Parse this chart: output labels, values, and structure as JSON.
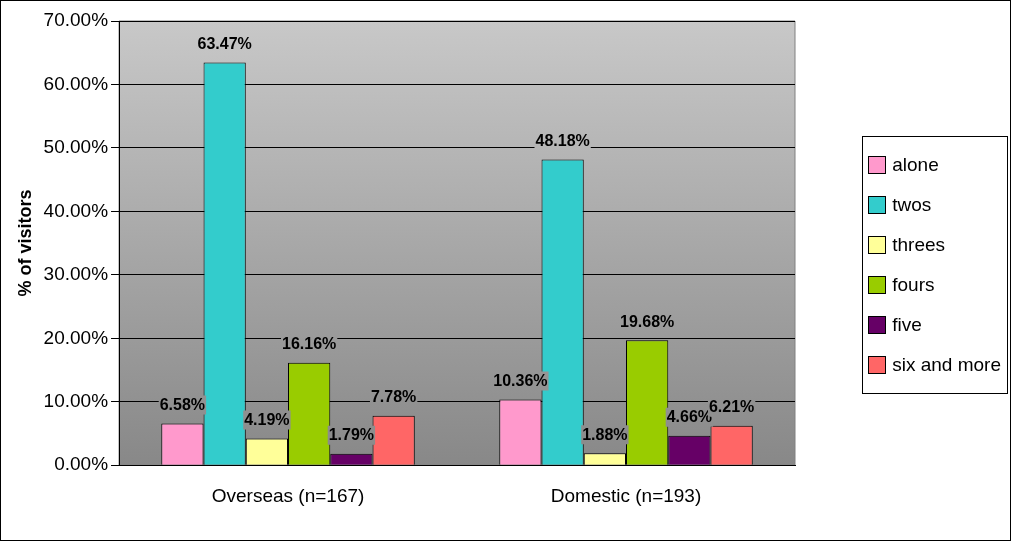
{
  "chart_data": {
    "type": "bar",
    "ylabel": "% of visitors",
    "categories": [
      "Overseas (n=167)",
      "Domestic (n=193)"
    ],
    "series": [
      {
        "name": "alone",
        "color": "#ff99cc",
        "values": [
          6.58,
          10.36
        ],
        "value_labels": [
          "6.58%",
          "10.36%"
        ]
      },
      {
        "name": "twos",
        "color": "#33cccc",
        "values": [
          63.47,
          48.18
        ],
        "value_labels": [
          "63.47%",
          "48.18%"
        ]
      },
      {
        "name": "threes",
        "color": "#ffff99",
        "values": [
          4.19,
          1.88
        ],
        "value_labels": [
          "4.19%",
          "1.88%"
        ]
      },
      {
        "name": "fours",
        "color": "#99cc00",
        "values": [
          16.16,
          19.68
        ],
        "value_labels": [
          "16.16%",
          "19.68%"
        ]
      },
      {
        "name": "five",
        "color": "#660066",
        "values": [
          1.79,
          4.66
        ],
        "value_labels": [
          "1.79%",
          "4.66%"
        ]
      },
      {
        "name": "six and more",
        "color": "#ff6666",
        "values": [
          7.78,
          6.21
        ],
        "value_labels": [
          "7.78%",
          "6.21%"
        ]
      }
    ],
    "ylim": [
      0,
      70
    ],
    "yticks": [
      {
        "value": 0,
        "label": "0.00%"
      },
      {
        "value": 10,
        "label": "10.00%"
      },
      {
        "value": 20,
        "label": "20.00%"
      },
      {
        "value": 30,
        "label": "30.00%"
      },
      {
        "value": 40,
        "label": "40.00%"
      },
      {
        "value": 50,
        "label": "50.00%"
      },
      {
        "value": 60,
        "label": "60.00%"
      },
      {
        "value": 70,
        "label": "70.00%"
      }
    ],
    "grid": "y",
    "legend": "right"
  }
}
